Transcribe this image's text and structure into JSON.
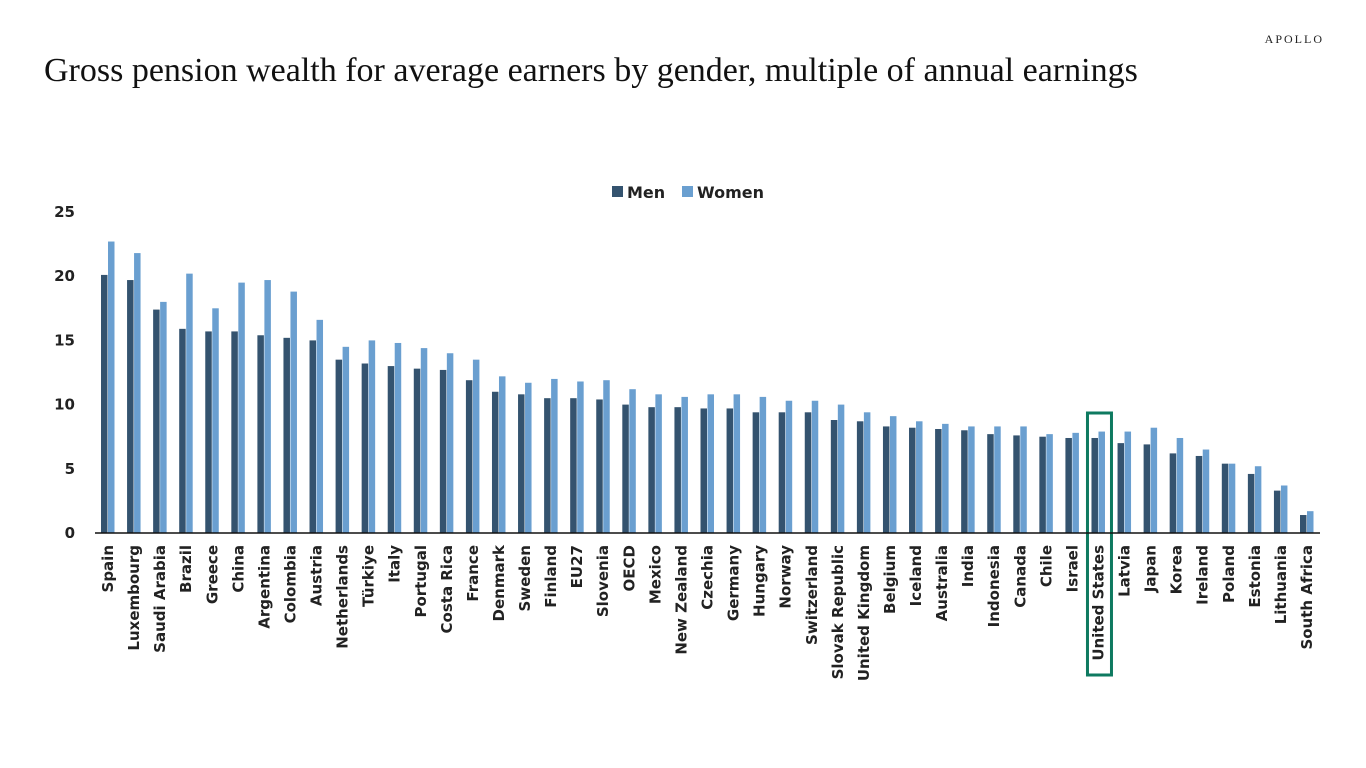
{
  "brand": "APOLLO",
  "title": "Gross pension wealth for average earners by gender, multiple of annual earnings",
  "chart_data": {
    "type": "bar",
    "title": "Gross pension wealth for average earners by gender, multiple of annual earnings",
    "xlabel": "",
    "ylabel": "",
    "ylim": [
      0,
      25
    ],
    "yticks": [
      0,
      5,
      10,
      15,
      20,
      25
    ],
    "grid": false,
    "legend_position": "top-center",
    "highlight": "United States",
    "highlight_color": "#0e7a60",
    "categories": [
      "Spain",
      "Luxembourg",
      "Saudi Arabia",
      "Brazil",
      "Greece",
      "China",
      "Argentina",
      "Colombia",
      "Austria",
      "Netherlands",
      "Türkiye",
      "Italy",
      "Portugal",
      "Costa Rica",
      "France",
      "Denmark",
      "Sweden",
      "Finland",
      "EU27",
      "Slovenia",
      "OECD",
      "Mexico",
      "New Zealand",
      "Czechia",
      "Germany",
      "Hungary",
      "Norway",
      "Switzerland",
      "Slovak Republic",
      "United Kingdom",
      "Belgium",
      "Iceland",
      "Australia",
      "India",
      "Indonesia",
      "Canada",
      "Chile",
      "Israel",
      "United States",
      "Latvia",
      "Japan",
      "Korea",
      "Ireland",
      "Poland",
      "Estonia",
      "Lithuania",
      "South Africa"
    ],
    "series": [
      {
        "name": "Men",
        "color": "#34536f",
        "values": [
          20.1,
          19.7,
          17.4,
          15.9,
          15.7,
          15.7,
          15.4,
          15.2,
          15.0,
          13.5,
          13.2,
          13.0,
          12.8,
          12.7,
          11.9,
          11.0,
          10.8,
          10.5,
          10.5,
          10.4,
          10.0,
          9.8,
          9.8,
          9.7,
          9.7,
          9.4,
          9.4,
          9.4,
          8.8,
          8.7,
          8.3,
          8.2,
          8.1,
          8.0,
          7.7,
          7.6,
          7.5,
          7.4,
          7.4,
          7.0,
          6.9,
          6.2,
          6.0,
          5.4,
          4.6,
          3.3,
          1.4
        ]
      },
      {
        "name": "Women",
        "color": "#6a9fd0",
        "values": [
          22.7,
          21.8,
          18.0,
          20.2,
          17.5,
          19.5,
          19.7,
          18.8,
          16.6,
          14.5,
          15.0,
          14.8,
          14.4,
          14.0,
          13.5,
          12.2,
          11.7,
          12.0,
          11.8,
          11.9,
          11.2,
          10.8,
          10.6,
          10.8,
          10.8,
          10.6,
          10.3,
          10.3,
          10.0,
          9.4,
          9.1,
          8.7,
          8.5,
          8.3,
          8.3,
          8.3,
          7.7,
          7.8,
          7.9,
          7.9,
          8.2,
          7.4,
          6.5,
          5.4,
          5.2,
          3.7,
          1.7
        ]
      }
    ]
  }
}
